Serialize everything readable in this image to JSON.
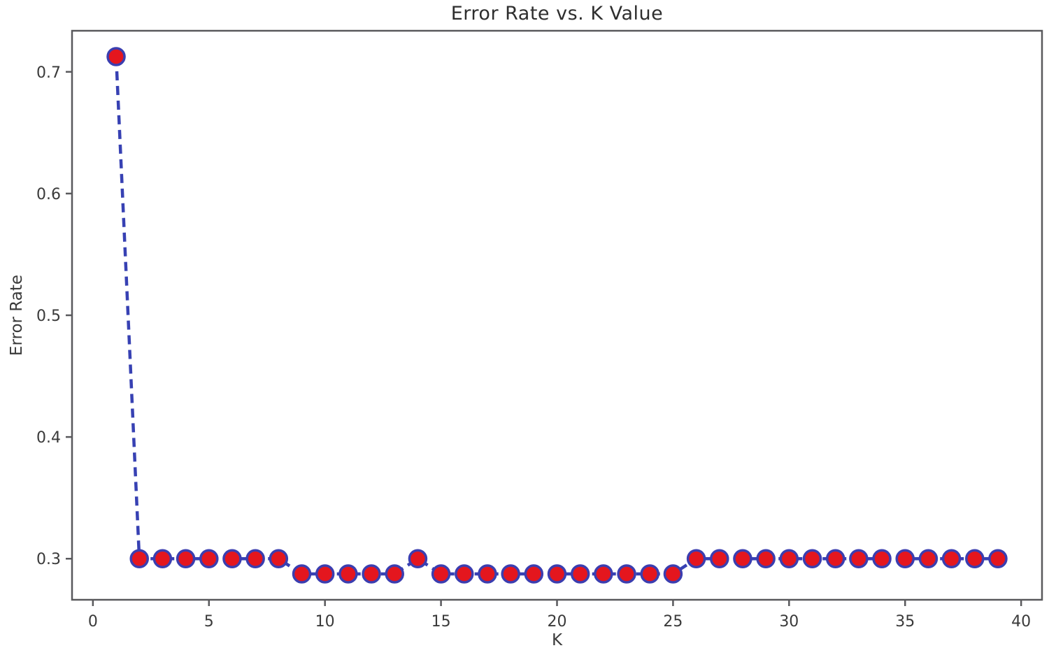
{
  "figure": {
    "title": "Error Rate vs. K Value",
    "xlabel": "K",
    "ylabel": "Error Rate"
  },
  "chart_data": {
    "type": "line",
    "title": "Error Rate vs. K Value",
    "xlabel": "K",
    "ylabel": "Error Rate",
    "x": [
      1,
      2,
      3,
      4,
      5,
      6,
      7,
      8,
      9,
      10,
      11,
      12,
      13,
      14,
      15,
      16,
      17,
      18,
      19,
      20,
      21,
      22,
      23,
      24,
      25,
      26,
      27,
      28,
      29,
      30,
      31,
      32,
      33,
      34,
      35,
      36,
      37,
      38,
      39
    ],
    "y": [
      0.7125,
      0.3,
      0.3,
      0.3,
      0.3,
      0.3,
      0.3,
      0.3,
      0.2875,
      0.2875,
      0.2875,
      0.2875,
      0.2875,
      0.3,
      0.2875,
      0.2875,
      0.2875,
      0.2875,
      0.2875,
      0.2875,
      0.2875,
      0.2875,
      0.2875,
      0.2875,
      0.2875,
      0.3,
      0.3,
      0.3,
      0.3,
      0.3,
      0.3,
      0.3,
      0.3,
      0.3,
      0.3,
      0.3,
      0.3,
      0.3,
      0.3
    ],
    "x_ticks": [
      0,
      5,
      10,
      15,
      20,
      25,
      30,
      35,
      40
    ],
    "x_tick_labels": [
      "0",
      "5",
      "10",
      "15",
      "20",
      "25",
      "30",
      "35",
      "40"
    ],
    "y_ticks": [
      0.3,
      0.4,
      0.5,
      0.6,
      0.7
    ],
    "y_tick_labels": [
      "0.3",
      "0.4",
      "0.5",
      "0.6",
      "0.7"
    ],
    "xlim": [
      -0.9,
      40.9
    ],
    "ylim": [
      0.26625,
      0.73375
    ],
    "grid": false,
    "legend": null,
    "line": {
      "color": "#3741b3",
      "style": "dashed",
      "width": 4.5,
      "dash": "13 8"
    },
    "marker": {
      "shape": "circle",
      "fill": "#e4161e",
      "edge": "#3b3eb0",
      "edge_width": 3.5,
      "radius": 12
    },
    "colors": {
      "spine": "#59595c",
      "tick_text": "#3a3a3a",
      "title_text": "#2e2e2e",
      "background": "#ffffff"
    }
  }
}
